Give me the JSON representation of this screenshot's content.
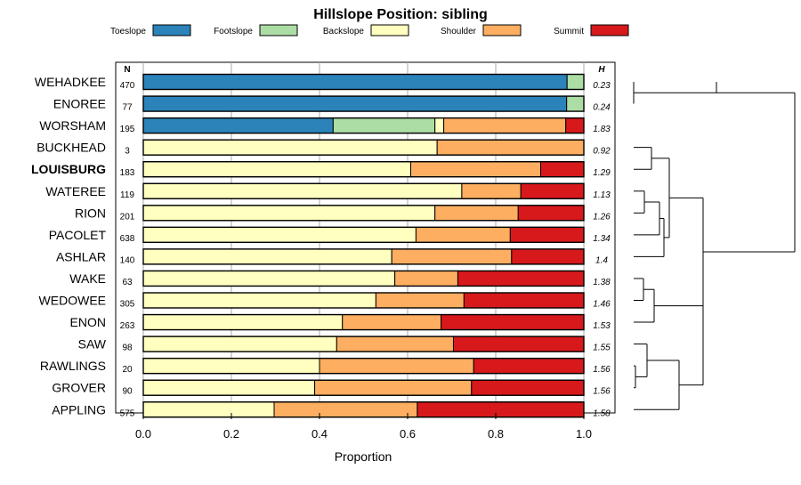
{
  "chart_data": {
    "type": "bar",
    "subtype": "stacked-horizontal-proportion",
    "title": "Hillslope Position: sibling",
    "xlabel": "Proportion",
    "ylabel": "",
    "xlim": [
      0,
      1
    ],
    "xticks": [
      "0.0",
      "0.2",
      "0.4",
      "0.6",
      "0.8",
      "1.0"
    ],
    "legend_position": "top",
    "n_header": "N",
    "h_header": "H",
    "bold_series": "LOUISBURG",
    "classes": [
      {
        "name": "Toeslope",
        "color": "#2B83BA"
      },
      {
        "name": "Footslope",
        "color": "#ABDDA4"
      },
      {
        "name": "Backslope",
        "color": "#FFFFBF"
      },
      {
        "name": "Shoulder",
        "color": "#FDAE61"
      },
      {
        "name": "Summit",
        "color": "#D7191C"
      }
    ],
    "series": [
      {
        "name": "WEHADKEE",
        "n": "470",
        "h": "0.23",
        "values": [
          0.962,
          0.038,
          0,
          0,
          0
        ]
      },
      {
        "name": "ENOREE",
        "n": "77",
        "h": "0.24",
        "values": [
          0.961,
          0.039,
          0,
          0,
          0
        ]
      },
      {
        "name": "WORSHAM",
        "n": "195",
        "h": "1.83",
        "values": [
          0.431,
          0.231,
          0.02,
          0.277,
          0.041
        ]
      },
      {
        "name": "BUCKHEAD",
        "n": "3",
        "h": "0.92",
        "values": [
          0,
          0,
          0.667,
          0.333,
          0
        ]
      },
      {
        "name": "LOUISBURG",
        "n": "183",
        "h": "1.29",
        "values": [
          0,
          0,
          0.607,
          0.295,
          0.098
        ]
      },
      {
        "name": "WATEREE",
        "n": "119",
        "h": "1.13",
        "values": [
          0,
          0,
          0.723,
          0.134,
          0.143
        ]
      },
      {
        "name": "RION",
        "n": "201",
        "h": "1.26",
        "values": [
          0,
          0,
          0.662,
          0.189,
          0.149
        ]
      },
      {
        "name": "PACOLET",
        "n": "638",
        "h": "1.34",
        "values": [
          0,
          0,
          0.619,
          0.214,
          0.167
        ]
      },
      {
        "name": "ASHLAR",
        "n": "140",
        "h": "1.4",
        "values": [
          0,
          0,
          0.564,
          0.272,
          0.164
        ]
      },
      {
        "name": "WAKE",
        "n": "63",
        "h": "1.38",
        "values": [
          0,
          0,
          0.571,
          0.143,
          0.286
        ]
      },
      {
        "name": "WEDOWEE",
        "n": "305",
        "h": "1.46",
        "values": [
          0,
          0,
          0.528,
          0.2,
          0.272
        ]
      },
      {
        "name": "ENON",
        "n": "263",
        "h": "1.53",
        "values": [
          0,
          0,
          0.452,
          0.224,
          0.324
        ]
      },
      {
        "name": "SAW",
        "n": "98",
        "h": "1.55",
        "values": [
          0,
          0,
          0.439,
          0.265,
          0.296
        ]
      },
      {
        "name": "RAWLINGS",
        "n": "20",
        "h": "1.56",
        "values": [
          0,
          0,
          0.4,
          0.35,
          0.25
        ]
      },
      {
        "name": "GROVER",
        "n": "90",
        "h": "1.56",
        "values": [
          0,
          0,
          0.389,
          0.356,
          0.255
        ]
      },
      {
        "name": "APPLING",
        "n": "575",
        "h": "1.58",
        "values": [
          0,
          0,
          0.297,
          0.325,
          0.378
        ]
      }
    ]
  }
}
